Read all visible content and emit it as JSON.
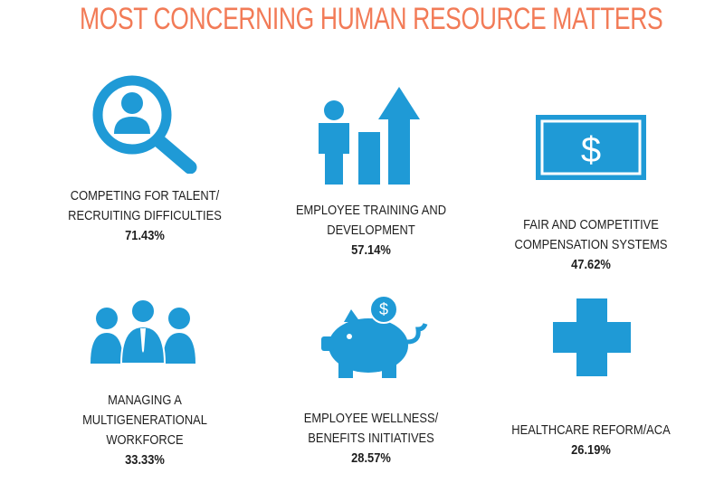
{
  "title": "MOST CONCERNING HUMAN RESOURCE MATTERS",
  "colors": {
    "title": "#f27b57",
    "icon": "#1f9ad6",
    "text": "#1f1f1f"
  },
  "items": [
    {
      "icon": "magnifier-person-icon",
      "lines": [
        "COMPETING FOR TALENT/",
        "RECRUITING DIFFICULTIES"
      ],
      "value": "71.43%"
    },
    {
      "icon": "growth-chart-person-icon",
      "lines": [
        "EMPLOYEE TRAINING AND",
        "DEVELOPMENT"
      ],
      "value": "57.14%"
    },
    {
      "icon": "dollar-bill-icon",
      "lines": [
        "FAIR AND COMPETITIVE",
        "COMPENSATION SYSTEMS"
      ],
      "value": "47.62%"
    },
    {
      "icon": "group-people-icon",
      "lines": [
        "MANAGING A",
        "MULTIGENERATIONAL",
        "WORKFORCE"
      ],
      "value": "33.33%"
    },
    {
      "icon": "piggy-bank-icon",
      "lines": [
        "EMPLOYEE WELLNESS/",
        "BENEFITS INITIATIVES"
      ],
      "value": "28.57%"
    },
    {
      "icon": "medical-cross-icon",
      "lines": [
        "HEALTHCARE REFORM/ACA"
      ],
      "value": "26.19%"
    }
  ]
}
